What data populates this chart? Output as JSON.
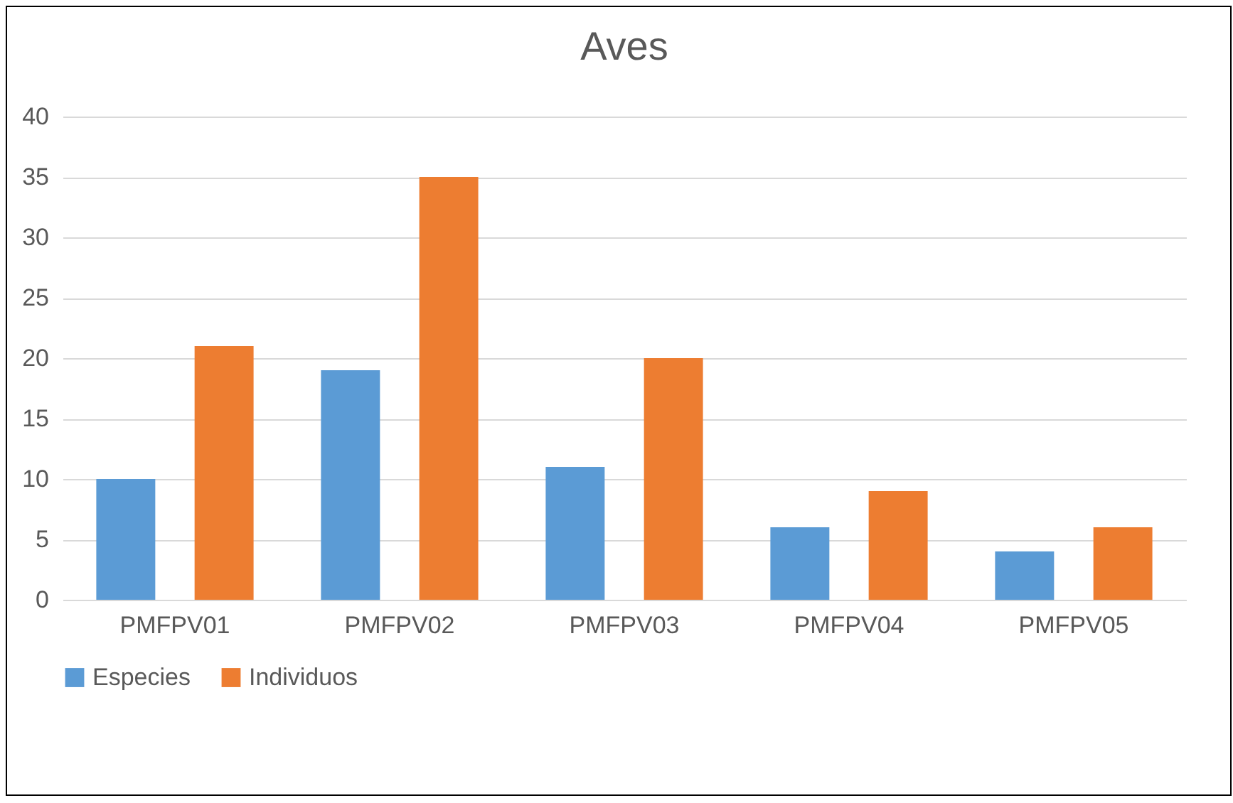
{
  "chart_data": {
    "type": "bar",
    "title": "Aves",
    "categories": [
      "PMFPV01",
      "PMFPV02",
      "PMFPV03",
      "PMFPV04",
      "PMFPV05"
    ],
    "series": [
      {
        "name": "Especies",
        "color": "#5b9bd5",
        "values": [
          10,
          19,
          11,
          6,
          4
        ]
      },
      {
        "name": "Individuos",
        "color": "#ed7d31",
        "values": [
          21,
          35,
          20,
          9,
          6
        ]
      }
    ],
    "ylim": [
      0,
      40
    ],
    "yticks": [
      0,
      5,
      10,
      15,
      20,
      25,
      30,
      35,
      40
    ],
    "grid": "y",
    "legend": "bottom"
  }
}
